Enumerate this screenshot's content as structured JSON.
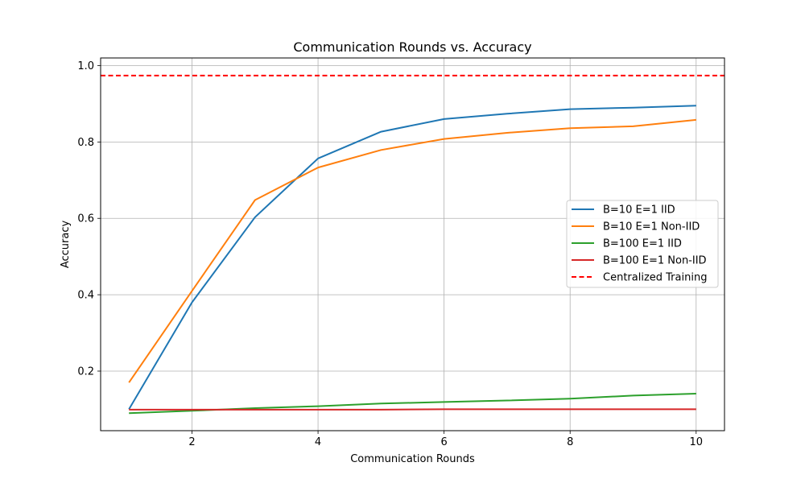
{
  "chart_data": {
    "type": "line",
    "title": "Communication Rounds vs. Accuracy",
    "xlabel": "Communication Rounds",
    "ylabel": "Accuracy",
    "xlim": [
      0.55,
      10.45
    ],
    "ylim": [
      0.044,
      1.02
    ],
    "xticks": [
      2,
      4,
      6,
      8,
      10
    ],
    "yticks": [
      0.2,
      0.4,
      0.6,
      0.8,
      1.0
    ],
    "grid": true,
    "legend_position": "center-right",
    "x": [
      1,
      2,
      3,
      4,
      5,
      6,
      7,
      8,
      9,
      10
    ],
    "series": [
      {
        "name": "B=10 E=1 IID",
        "color": "#1f77b4",
        "values": [
          0.1,
          0.38,
          0.603,
          0.757,
          0.827,
          0.86,
          0.874,
          0.886,
          0.89,
          0.895
        ]
      },
      {
        "name": "B=10 E=1 Non-IID",
        "color": "#ff7f0e",
        "values": [
          0.17,
          0.41,
          0.648,
          0.733,
          0.779,
          0.808,
          0.824,
          0.836,
          0.841,
          0.858
        ]
      },
      {
        "name": "B=100 E=1 IID",
        "color": "#2ca02c",
        "values": [
          0.09,
          0.096,
          0.103,
          0.108,
          0.115,
          0.119,
          0.123,
          0.128,
          0.136,
          0.141
        ]
      },
      {
        "name": "B=100 E=1 Non-IID",
        "color": "#d62728",
        "values": [
          0.099,
          0.099,
          0.099,
          0.099,
          0.099,
          0.1,
          0.1,
          0.1,
          0.1,
          0.1
        ]
      }
    ],
    "reference_lines": [
      {
        "name": "Centralized Training",
        "color": "#ff0000",
        "style": "dashed",
        "value": 0.974
      }
    ]
  }
}
